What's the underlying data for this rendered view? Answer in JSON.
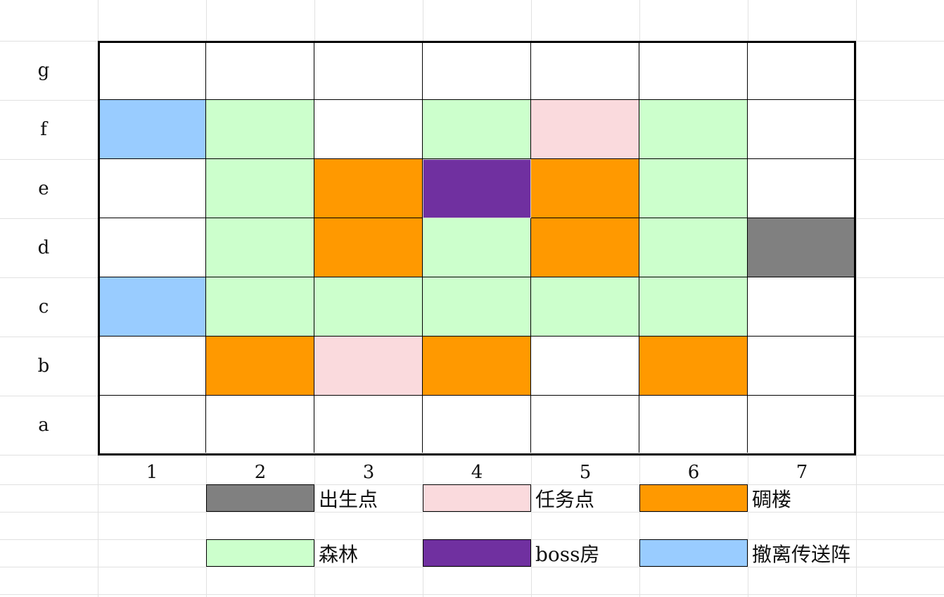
{
  "colors": {
    "spawn": "#808080",
    "quest": "#fadadd",
    "blockhouse": "#ff9900",
    "forest": "#ccffcc",
    "boss": "#7030a0",
    "extract": "#99ccff",
    "empty": "#ffffff"
  },
  "board": {
    "row_labels": [
      "g",
      "f",
      "e",
      "d",
      "c",
      "b",
      "a"
    ],
    "col_labels": [
      "1",
      "2",
      "3",
      "4",
      "5",
      "6",
      "7"
    ],
    "rows": [
      [
        "empty",
        "empty",
        "empty",
        "empty",
        "empty",
        "empty",
        "empty"
      ],
      [
        "extract",
        "forest",
        "empty",
        "forest",
        "quest",
        "forest",
        "empty"
      ],
      [
        "empty",
        "forest",
        "blockhouse",
        "boss",
        "blockhouse",
        "forest",
        "empty"
      ],
      [
        "empty",
        "forest",
        "blockhouse",
        "forest",
        "blockhouse",
        "forest",
        "spawn"
      ],
      [
        "extract",
        "forest",
        "forest",
        "forest",
        "forest",
        "forest",
        "empty"
      ],
      [
        "empty",
        "blockhouse",
        "quest",
        "blockhouse",
        "empty",
        "blockhouse",
        "empty"
      ],
      [
        "empty",
        "empty",
        "empty",
        "empty",
        "empty",
        "empty",
        "empty"
      ]
    ]
  },
  "legend": [
    {
      "type": "spawn",
      "label": "出生点"
    },
    {
      "type": "quest",
      "label": "任务点"
    },
    {
      "type": "blockhouse",
      "label": "碉楼"
    },
    {
      "type": "forest",
      "label": "森林"
    },
    {
      "type": "boss",
      "label": "boss房"
    },
    {
      "type": "extract",
      "label": "撤离传送阵"
    }
  ]
}
